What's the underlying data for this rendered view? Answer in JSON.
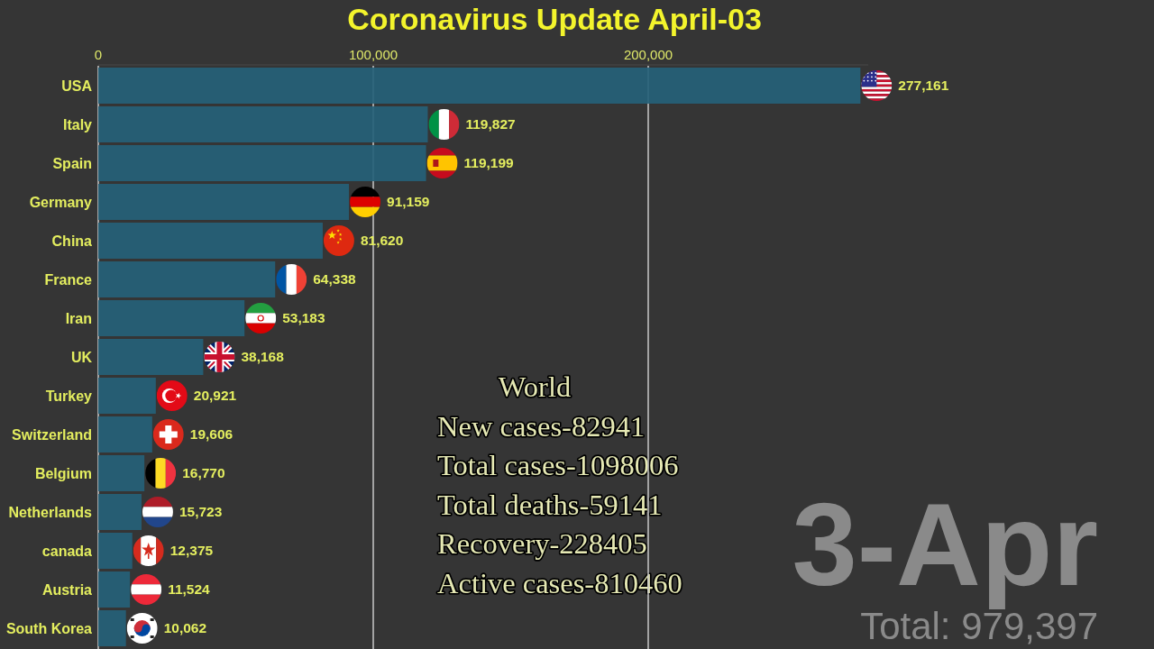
{
  "chart_data": {
    "type": "bar",
    "orientation": "horizontal",
    "title": "Coronavirus Update April-03",
    "categories": [
      "USA",
      "Italy",
      "Spain",
      "Germany",
      "China",
      "France",
      "Iran",
      "UK",
      "Turkey",
      "Switzerland",
      "Belgium",
      "Netherlands",
      "canada",
      "Austria",
      "South Korea"
    ],
    "values": [
      277161,
      119827,
      119199,
      91159,
      81620,
      64338,
      53183,
      38168,
      20921,
      19606,
      16770,
      15723,
      12375,
      11524,
      10062
    ],
    "value_labels": [
      "277,161",
      "119,827",
      "119,199",
      "91,159",
      "81,620",
      "64,338",
      "53,183",
      "38,168",
      "20,921",
      "19,606",
      "16,770",
      "15,723",
      "12,375",
      "11,524",
      "10,062"
    ],
    "color": "#256178",
    "xlim": [
      0,
      280000
    ],
    "xticks": [
      0,
      {
        "value": 100000,
        "label": "100,000"
      },
      {
        "value": 200000,
        "label": "200,000"
      }
    ],
    "grid": "x",
    "annotations": [
      "World",
      "New cases-82941",
      "Total cases-1098006",
      "Total deaths-59141",
      "Recovery-228405",
      "Active cases-810460",
      "3-Apr",
      "Total: 979,397"
    ]
  }
}
